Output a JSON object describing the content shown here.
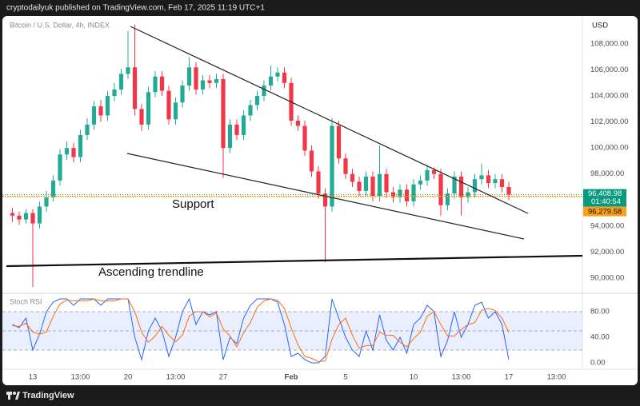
{
  "header": {
    "publisher": "cryptodailyuk published on TradingView.com, Feb 17, 2025 11:19 UTC+1"
  },
  "footer": {
    "brand": "TradingView"
  },
  "chart_data": [
    {
      "type": "candlestick",
      "title": "Bitcoin / U.S. Dollar, 4h, INDEX",
      "currency": "USD",
      "up_color": "#22ab94",
      "down_color": "#f23645",
      "categories": [
        null,
        null,
        null,
        "13",
        null,
        null,
        null,
        null,
        null,
        null,
        "13:00",
        null,
        null,
        null,
        null,
        null,
        null,
        "20",
        null,
        null,
        null,
        null,
        null,
        null,
        "13:00",
        null,
        null,
        null,
        null,
        null,
        null,
        "27",
        null,
        null,
        null,
        null,
        null,
        null,
        null,
        null,
        null,
        "Feb",
        null,
        null,
        null,
        null,
        null,
        null,
        null,
        "5",
        null,
        null,
        null,
        null,
        null,
        null,
        null,
        null,
        null,
        "10",
        null,
        null,
        null,
        null,
        null,
        null,
        "13:00",
        null,
        null,
        null,
        null,
        null,
        null,
        "17",
        null,
        null,
        null,
        null,
        null,
        null,
        "13:00",
        null,
        null,
        null
      ],
      "open": [
        95000,
        94800,
        94500,
        95000,
        94200,
        95500,
        96200,
        97500,
        99500,
        100000,
        99300,
        101000,
        101800,
        103200,
        102500,
        104000,
        104500,
        105700,
        106200,
        103000,
        101800,
        104300,
        105500,
        104400,
        102200,
        103500,
        104800,
        106200,
        104500,
        105200,
        105000,
        105300,
        100000,
        101800,
        101000,
        102500,
        103300,
        104000,
        104800,
        105500,
        105800,
        105000,
        102100,
        101700,
        99800,
        98200,
        96500,
        95500,
        101700,
        99200,
        98000,
        97400,
        96700,
        97800,
        96300,
        98000,
        96600,
        96200,
        96800,
        95900,
        97200,
        97500,
        98300,
        98000,
        95600,
        96500,
        97800,
        96200,
        96600,
        97600,
        97900,
        97300,
        97600,
        97000,
        null,
        null,
        null,
        null,
        null,
        null,
        null,
        null,
        null,
        null
      ],
      "high": [
        95400,
        95100,
        95300,
        95300,
        95900,
        96700,
        97900,
        99900,
        100500,
        100400,
        101400,
        102300,
        103600,
        103700,
        104400,
        105000,
        106100,
        109000,
        109500,
        103400,
        104700,
        105900,
        105900,
        104800,
        103900,
        105200,
        107000,
        106600,
        105600,
        105600,
        105700,
        105700,
        102200,
        102200,
        102900,
        103700,
        104400,
        105200,
        106300,
        106200,
        106200,
        105400,
        102500,
        102100,
        100200,
        98600,
        96900,
        102300,
        102100,
        99600,
        98400,
        97800,
        98200,
        98200,
        100200,
        98400,
        97000,
        97200,
        97200,
        97600,
        97900,
        98700,
        98500,
        98400,
        96900,
        98200,
        98200,
        97000,
        98000,
        98800,
        98300,
        98000,
        98000,
        97400,
        null,
        null,
        null,
        null,
        null,
        null,
        null,
        null,
        null,
        null
      ],
      "low": [
        94300,
        94100,
        94200,
        89300,
        93800,
        95100,
        95900,
        97100,
        99100,
        98900,
        98900,
        100600,
        101400,
        102000,
        102100,
        103600,
        104100,
        105300,
        102500,
        101300,
        101400,
        103900,
        104000,
        101800,
        101800,
        103100,
        104400,
        104100,
        104100,
        104600,
        104600,
        97700,
        99600,
        100600,
        100600,
        102100,
        102900,
        103600,
        104400,
        105100,
        104600,
        101700,
        101300,
        99400,
        97800,
        96100,
        91200,
        95100,
        98800,
        97600,
        97000,
        96300,
        96300,
        95900,
        95900,
        96200,
        95800,
        95800,
        95500,
        95500,
        96800,
        97100,
        97600,
        94800,
        95200,
        96100,
        94800,
        95800,
        96200,
        97200,
        96900,
        96900,
        96600,
        96000,
        null,
        null,
        null,
        null,
        null,
        null,
        null,
        null,
        null,
        null
      ],
      "close": [
        94800,
        94500,
        95000,
        94200,
        95500,
        96200,
        97500,
        99500,
        100000,
        99300,
        101000,
        101800,
        103200,
        102500,
        104000,
        104500,
        105700,
        106200,
        103000,
        101800,
        104300,
        105500,
        104400,
        102200,
        103500,
        104800,
        106200,
        104500,
        105200,
        105000,
        105300,
        100000,
        101800,
        101000,
        102500,
        103300,
        104000,
        104800,
        105500,
        105800,
        105000,
        102100,
        101700,
        99800,
        98200,
        96500,
        95500,
        101700,
        99200,
        98000,
        97400,
        96700,
        97800,
        96300,
        98000,
        96600,
        96200,
        96800,
        95900,
        97200,
        97500,
        98300,
        98000,
        95600,
        96500,
        97800,
        96200,
        96600,
        97600,
        97900,
        97300,
        97600,
        97000,
        96409,
        null,
        null,
        null,
        null,
        null,
        null,
        null,
        null,
        null,
        null
      ],
      "ylim": [
        88950,
        110150
      ],
      "yticks": [
        {
          "value": 90000,
          "label": "90,000.00"
        },
        {
          "value": 92000,
          "label": "92,000.00"
        },
        {
          "value": 94000,
          "label": "94,000.00"
        },
        {
          "value": 96000,
          "label": "96,000.00"
        },
        {
          "value": 98000,
          "label": "98,000.00"
        },
        {
          "value": 100000,
          "label": "100,000.00"
        },
        {
          "value": 102000,
          "label": "102,000.00"
        },
        {
          "value": 104000,
          "label": "104,000.00"
        },
        {
          "value": 106000,
          "label": "106,000.00"
        },
        {
          "value": 108000,
          "label": "108,000.00"
        }
      ],
      "grid": false,
      "last_price": {
        "value": 96408.98,
        "label": "96,408.98",
        "color": "#089981"
      },
      "countdown": "01:40:54",
      "reference_price": {
        "value": 96279.58,
        "label": "96,279.58",
        "color": "#f7a21b"
      },
      "annotations": [
        "Support",
        "Ascending trendline"
      ]
    },
    {
      "type": "line",
      "title": "Stoch RSI",
      "series": [
        {
          "color": "#2962ff",
          "values": [
            60,
            55,
            70,
            20,
            45,
            80,
            95,
            100,
            100,
            90,
            100,
            100,
            100,
            90,
            100,
            100,
            100,
            100,
            40,
            5,
            50,
            70,
            50,
            10,
            40,
            80,
            100,
            60,
            80,
            75,
            80,
            5,
            40,
            30,
            70,
            90,
            100,
            100,
            100,
            95,
            60,
            10,
            15,
            5,
            0,
            0,
            10,
            100,
            70,
            40,
            20,
            10,
            50,
            20,
            75,
            35,
            20,
            40,
            15,
            60,
            70,
            90,
            80,
            10,
            35,
            80,
            40,
            60,
            90,
            95,
            70,
            80,
            60,
            5,
            null,
            null,
            null,
            null,
            null,
            null,
            null,
            null,
            null,
            null
          ]
        },
        {
          "color": "#ff6d00",
          "values": [
            58,
            57,
            62,
            48,
            45,
            48,
            73,
            92,
            98,
            97,
            97,
            97,
            100,
            97,
            97,
            97,
            100,
            100,
            80,
            48,
            32,
            42,
            57,
            43,
            33,
            43,
            73,
            80,
            80,
            72,
            78,
            53,
            42,
            25,
            47,
            63,
            87,
            97,
            100,
            98,
            85,
            55,
            28,
            10,
            7,
            2,
            3,
            37,
            60,
            70,
            43,
            23,
            27,
            27,
            48,
            43,
            43,
            32,
            25,
            38,
            48,
            73,
            80,
            60,
            42,
            42,
            52,
            60,
            63,
            82,
            85,
            82,
            70,
            48,
            null,
            null,
            null,
            null,
            null,
            null,
            null,
            null,
            null,
            null
          ]
        }
      ],
      "ylim": [
        -10,
        105
      ],
      "yticks": [
        {
          "value": 80,
          "label": "80.00"
        },
        {
          "value": 40,
          "label": "40.00"
        },
        {
          "value": 0,
          "label": "0.00"
        }
      ],
      "band": [
        20,
        80
      ],
      "midline": 50
    }
  ]
}
